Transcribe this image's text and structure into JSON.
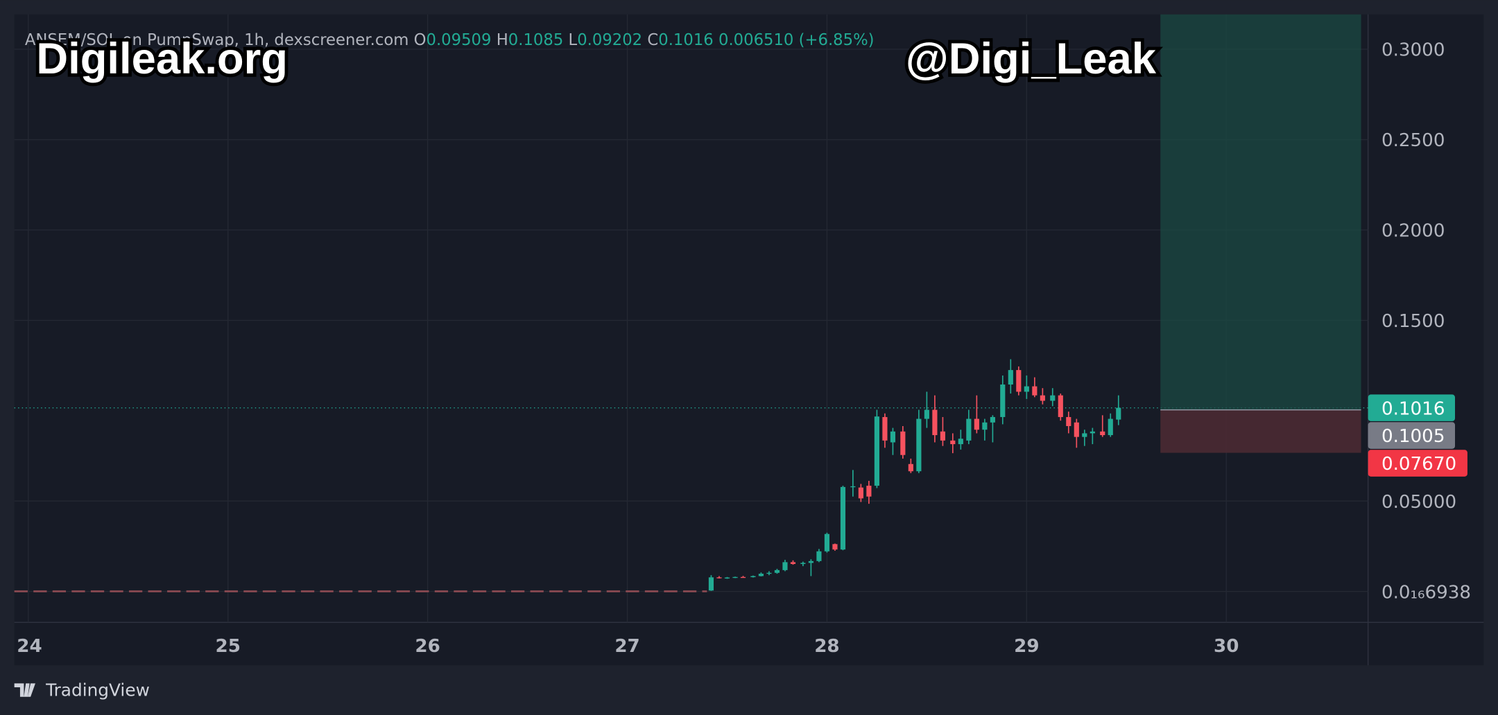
{
  "header": {
    "symbol": "ANSEM/SOL on PumpSwap, 1h, dexscreener.com",
    "o_label": "O",
    "o": "0.09509",
    "h_label": "H",
    "h": "0.1085",
    "l_label": "L",
    "l": "0.09202",
    "c_label": "C",
    "c": "0.1016",
    "change": "0.006510 (+6.85%)"
  },
  "watermarks": [
    "Digileak.org",
    "@Digi_Leak"
  ],
  "footer": {
    "brand": "TradingView"
  },
  "chart_data": {
    "type": "candlestick",
    "up_color": "#22ab94",
    "down_color": "#f7525f",
    "grid": true,
    "xlim": [
      23.93,
      30.71
    ],
    "xticks": [
      24,
      25,
      26,
      27,
      28,
      29,
      30
    ],
    "ylim": [
      -0.0171,
      0.3193
    ],
    "yticks": [
      {
        "value": 6.938e-17,
        "label": "0.0₁₆6938"
      },
      {
        "value": 0.05,
        "label": "0.05000"
      },
      {
        "value": 0.15,
        "label": "0.1500"
      },
      {
        "value": 0.2,
        "label": "0.2000"
      },
      {
        "value": 0.25,
        "label": "0.2500"
      },
      {
        "value": 0.3,
        "label": "0.3000"
      }
    ],
    "x": [
      27.42,
      27.46,
      27.5,
      27.54,
      27.58,
      27.63,
      27.67,
      27.71,
      27.75,
      27.79,
      27.83,
      27.88,
      27.92,
      27.96,
      28.0,
      28.04,
      28.08,
      28.13,
      28.17,
      28.21,
      28.25,
      28.29,
      28.33,
      28.38,
      28.42,
      28.46,
      28.5,
      28.54,
      28.58,
      28.63,
      28.67,
      28.71,
      28.75,
      28.79,
      28.83,
      28.88,
      28.92,
      28.96,
      29.0,
      29.04,
      29.08,
      29.13,
      29.17,
      29.21,
      29.25,
      29.29,
      29.33,
      29.38,
      29.42,
      29.46
    ],
    "open": [
      0.0005,
      0.0078,
      0.0074,
      0.0077,
      0.008,
      0.0079,
      0.0085,
      0.0098,
      0.0103,
      0.0118,
      0.0162,
      0.0152,
      0.0158,
      0.0168,
      0.0222,
      0.0262,
      0.0232,
      0.0578,
      0.0575,
      0.0585,
      0.0585,
      0.0965,
      0.0825,
      0.0885,
      0.0705,
      0.0665,
      0.0955,
      0.1005,
      0.0885,
      0.0835,
      0.0815,
      0.0835,
      0.0955,
      0.0895,
      0.0935,
      0.0965,
      0.1145,
      0.1225,
      0.1105,
      0.1135,
      0.1085,
      0.1055,
      0.1085,
      0.0965,
      0.0935,
      0.0855,
      0.0875,
      0.0885,
      0.0865,
      0.09509
    ],
    "high": [
      0.009,
      0.0085,
      0.008,
      0.0082,
      0.0086,
      0.0088,
      0.0105,
      0.0112,
      0.0125,
      0.0175,
      0.0172,
      0.0165,
      0.0178,
      0.0235,
      0.0325,
      0.0265,
      0.0585,
      0.0672,
      0.0595,
      0.0612,
      0.1005,
      0.0985,
      0.0905,
      0.0915,
      0.0735,
      0.1005,
      0.1105,
      0.1085,
      0.0965,
      0.0875,
      0.0895,
      0.1005,
      0.1085,
      0.0955,
      0.0975,
      0.1195,
      0.1285,
      0.1245,
      0.1195,
      0.1185,
      0.1125,
      0.1125,
      0.1095,
      0.0995,
      0.0955,
      0.0895,
      0.0905,
      0.0975,
      0.0985,
      0.1085
    ],
    "low": [
      0.0003,
      0.0072,
      0.007,
      0.0074,
      0.0076,
      0.0077,
      0.0083,
      0.009,
      0.0098,
      0.0112,
      0.0148,
      0.014,
      0.0085,
      0.0162,
      0.0215,
      0.0225,
      0.0228,
      0.0525,
      0.0495,
      0.0485,
      0.0572,
      0.0795,
      0.0755,
      0.0735,
      0.0655,
      0.0655,
      0.0905,
      0.0825,
      0.0805,
      0.0765,
      0.0785,
      0.0815,
      0.0875,
      0.0835,
      0.0825,
      0.0925,
      0.1095,
      0.1085,
      0.1065,
      0.1075,
      0.1035,
      0.1025,
      0.0945,
      0.0875,
      0.0795,
      0.0805,
      0.0815,
      0.0855,
      0.0855,
      0.09202
    ],
    "close": [
      0.0078,
      0.0074,
      0.0077,
      0.008,
      0.0079,
      0.0085,
      0.0098,
      0.0103,
      0.0118,
      0.0162,
      0.0152,
      0.0158,
      0.0168,
      0.0222,
      0.0318,
      0.0232,
      0.0578,
      0.0582,
      0.0515,
      0.0525,
      0.0968,
      0.0835,
      0.0885,
      0.0755,
      0.0665,
      0.0955,
      0.1005,
      0.0865,
      0.0835,
      0.0815,
      0.0845,
      0.0955,
      0.0895,
      0.0935,
      0.0965,
      0.1145,
      0.1225,
      0.1105,
      0.1135,
      0.1085,
      0.1055,
      0.1085,
      0.0965,
      0.0915,
      0.0855,
      0.0875,
      0.0885,
      0.0865,
      0.0955,
      0.1016
    ],
    "last_price_line": 0.1016,
    "position": {
      "x_start": 29.67,
      "x_end": 30.675,
      "entry": 0.1005,
      "stop": 0.0767,
      "target_color": "#1b4a43",
      "stop_color": "#4a2a33"
    },
    "price_labels": {
      "values": [
        0.1016,
        0.1005,
        0.0767
      ],
      "value_labels": [
        "0.1016",
        "0.1005",
        "0.07670"
      ],
      "colors": [
        "#22ab94",
        "#787b86",
        "#f23645"
      ]
    }
  }
}
